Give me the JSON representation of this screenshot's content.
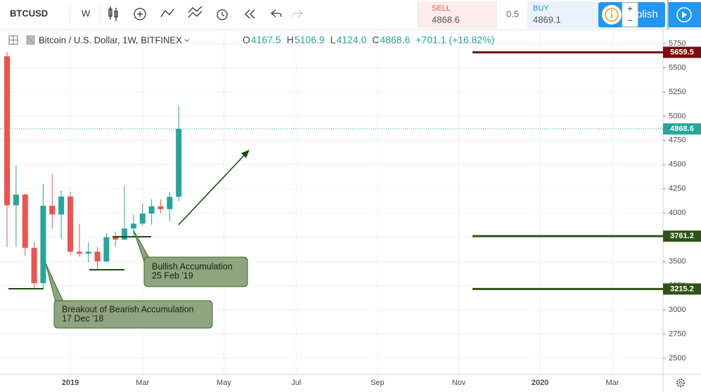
{
  "toolbar": {
    "symbol": "BTCUSD",
    "interval": "W",
    "sell_label": "SELL",
    "sell_price": "4868.6",
    "spread": "0.5",
    "buy_label": "BUY",
    "buy_price": "4869.1",
    "publish": "blish"
  },
  "chart_data": {
    "type": "candlestick",
    "title": "Bitcoin / U.S. Dollar, 1W, BITFINEX",
    "ohlc_legend": [
      {
        "label": "O",
        "value": "4167.5"
      },
      {
        "label": "H",
        "value": "5106.9"
      },
      {
        "label": "L",
        "value": "4124.0"
      },
      {
        "label": "C",
        "value": "4868.6"
      }
    ],
    "change": "+701.1 (+16.82%)",
    "categories": [
      null,
      null,
      null,
      null,
      null,
      null,
      null,
      "2019",
      null,
      null,
      null,
      null,
      null,
      null,
      null,
      "Mar",
      null,
      null,
      null,
      null,
      null,
      null,
      null,
      null,
      "May",
      null,
      null,
      null,
      null,
      null,
      null,
      null,
      "Jul",
      null,
      null,
      null,
      null,
      null,
      null,
      null,
      null,
      "Sep",
      null,
      null,
      null,
      null,
      null,
      null,
      null,
      null,
      "Nov",
      null,
      null,
      null,
      null,
      null,
      null,
      null,
      null,
      "2020",
      null,
      null,
      null,
      null,
      null,
      null,
      null,
      "Mar",
      null,
      null,
      null,
      null,
      null
    ],
    "open": [
      5620,
      4080,
      4190,
      3640,
      3275,
      4075,
      3985,
      4170,
      3600,
      3580,
      3600,
      3500,
      3750,
      3725,
      3840,
      3890,
      3995,
      4070,
      4040,
      4167.5,
      null,
      null,
      null,
      null,
      null,
      null,
      null,
      null,
      null,
      null,
      null,
      null,
      null,
      null,
      null,
      null,
      null,
      null,
      null,
      null,
      null,
      null,
      null,
      null,
      null,
      null,
      null,
      null,
      null,
      null,
      null,
      null,
      null,
      null,
      null,
      null,
      null,
      null,
      null,
      null,
      null,
      null,
      null,
      null,
      null,
      null,
      null,
      null,
      null,
      null,
      null,
      null,
      null
    ],
    "high": [
      5660,
      4490,
      4200,
      3700,
      4300,
      4400,
      4230,
      4220,
      3890,
      3700,
      3650,
      3790,
      3810,
      4285,
      3980,
      4100,
      4140,
      4140,
      4215,
      5106.9,
      null,
      null,
      null,
      null,
      null,
      null,
      null,
      null,
      null,
      null,
      null,
      null,
      null,
      null,
      null,
      null,
      null,
      null,
      null,
      null,
      null,
      null,
      null,
      null,
      null,
      null,
      null,
      null,
      null,
      null,
      null,
      null,
      null,
      null,
      null,
      null,
      null,
      null,
      null,
      null,
      null,
      null,
      null,
      null,
      null,
      null,
      null,
      null,
      null,
      null,
      null,
      null,
      null
    ],
    "low": [
      3650,
      3650,
      3560,
      3215,
      3225,
      3840,
      3730,
      3570,
      3550,
      3490,
      3415,
      3490,
      3650,
      3720,
      3750,
      3870,
      3880,
      4000,
      3910,
      4124.0,
      null,
      null,
      null,
      null,
      null,
      null,
      null,
      null,
      null,
      null,
      null,
      null,
      null,
      null,
      null,
      null,
      null,
      null,
      null,
      null,
      null,
      null,
      null,
      null,
      null,
      null,
      null,
      null,
      null,
      null,
      null,
      null,
      null,
      null,
      null,
      null,
      null,
      null,
      null,
      null,
      null,
      null,
      null,
      null,
      null,
      null,
      null,
      null,
      null,
      null,
      null,
      null,
      null
    ],
    "close": [
      4080,
      4190,
      3640,
      3275,
      4075,
      3985,
      4170,
      3600,
      3580,
      3600,
      3500,
      3750,
      3725,
      3840,
      3890,
      3995,
      4070,
      4040,
      4167.5,
      4868.6,
      null,
      null,
      null,
      null,
      null,
      null,
      null,
      null,
      null,
      null,
      null,
      null,
      null,
      null,
      null,
      null,
      null,
      null,
      null,
      null,
      null,
      null,
      null,
      null,
      null,
      null,
      null,
      null,
      null,
      null,
      null,
      null,
      null,
      null,
      null,
      null,
      null,
      null,
      null,
      null,
      null,
      null,
      null,
      null,
      null,
      null,
      null,
      null,
      null,
      null,
      null,
      null,
      null
    ],
    "up_color": "#26a69a",
    "down_color": "#ef5350",
    "last_price": 4868.6,
    "last_color": "#26a69a",
    "levels": [
      {
        "value": 5659.5,
        "color": "#7a0c0c"
      },
      {
        "value": 3761.2,
        "color": "#2f5316"
      },
      {
        "value": 3215.2,
        "color": "#2f5316"
      }
    ],
    "ylim": [
      2333,
      5895
    ],
    "yticks": [
      2500,
      2750,
      3000,
      3250,
      3500,
      3750,
      4000,
      4250,
      4500,
      4750,
      5000,
      5250,
      5500,
      5750
    ],
    "grid": true,
    "annotations": [
      {
        "text": "Breakout of Bearish Accumulation",
        "date": "17 Dec '18"
      },
      {
        "text": "Bullish Accumulation",
        "date": "25 Feb '19"
      }
    ]
  }
}
